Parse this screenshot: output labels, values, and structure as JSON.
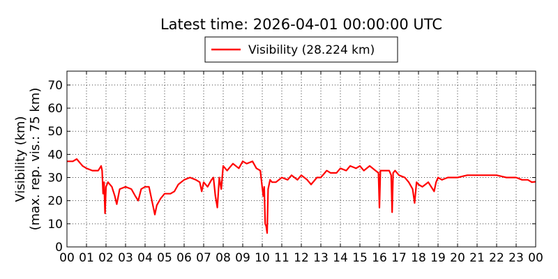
{
  "chart_data": {
    "type": "line",
    "title": "Latest time: 2026-04-01 00:00:00 UTC",
    "ylabel": "Visibility (km)",
    "ylabel2": "(max. rep. vis.: 75 km)",
    "xlabel": "",
    "xlim": [
      0,
      24
    ],
    "ylim": [
      0,
      76
    ],
    "grid": true,
    "legend_position": "top-center",
    "x_tick_labels": [
      "00",
      "01",
      "02",
      "03",
      "04",
      "05",
      "06",
      "07",
      "08",
      "09",
      "10",
      "11",
      "12",
      "13",
      "14",
      "15",
      "16",
      "17",
      "18",
      "19",
      "20",
      "21",
      "22",
      "23",
      "00"
    ],
    "y_ticks": [
      0,
      10,
      20,
      30,
      40,
      50,
      60,
      70
    ],
    "series": [
      {
        "name": "Visibility (28.224 km)",
        "color": "#ff0000",
        "x": [
          0.0,
          0.3,
          0.5,
          0.8,
          1.0,
          1.3,
          1.6,
          1.75,
          1.8,
          1.85,
          1.9,
          1.95,
          2.0,
          2.1,
          2.3,
          2.45,
          2.55,
          2.7,
          3.0,
          3.3,
          3.5,
          3.65,
          3.8,
          4.0,
          4.2,
          4.35,
          4.4,
          4.5,
          4.6,
          4.8,
          5.0,
          5.3,
          5.5,
          5.7,
          6.0,
          6.3,
          6.6,
          6.8,
          6.9,
          7.0,
          7.2,
          7.4,
          7.5,
          7.6,
          7.7,
          7.8,
          7.9,
          8.0,
          8.2,
          8.5,
          8.8,
          9.0,
          9.2,
          9.5,
          9.7,
          9.9,
          10.05,
          10.1,
          10.15,
          10.2,
          10.25,
          10.3,
          10.4,
          10.5,
          10.7,
          11.0,
          11.3,
          11.5,
          11.8,
          12.0,
          12.3,
          12.5,
          12.8,
          13.0,
          13.3,
          13.5,
          13.8,
          14.0,
          14.3,
          14.5,
          14.8,
          15.0,
          15.2,
          15.5,
          15.8,
          15.95,
          16.0,
          16.05,
          16.2,
          16.5,
          16.6,
          16.65,
          16.7,
          16.8,
          17.0,
          17.3,
          17.5,
          17.7,
          17.8,
          17.9,
          18.0,
          18.2,
          18.5,
          18.8,
          18.9,
          19.0,
          19.2,
          19.5,
          19.8,
          20.0,
          20.5,
          21.0,
          21.5,
          22.0,
          22.5,
          23.0,
          23.3,
          23.6,
          23.8,
          24.0
        ],
        "y": [
          37,
          37,
          38,
          35,
          34,
          33,
          33,
          35,
          33,
          23,
          28,
          14.5,
          26,
          28,
          26,
          22,
          18.5,
          25,
          26,
          25,
          22,
          20,
          25,
          26,
          26,
          20,
          18,
          14,
          18,
          21,
          23,
          23,
          24,
          27,
          29,
          30,
          29,
          28,
          24,
          28,
          26,
          29,
          30,
          22,
          17,
          30,
          25,
          35,
          33,
          36,
          34,
          37,
          36,
          37,
          34,
          33,
          22,
          26,
          10,
          9,
          6,
          25,
          29,
          28,
          28,
          30,
          29,
          31,
          29,
          31,
          29,
          27,
          30,
          30,
          33,
          32,
          32,
          34,
          33,
          35,
          34,
          35,
          33,
          35,
          33,
          32,
          17,
          33,
          33,
          33,
          31,
          15,
          32,
          33,
          31,
          30,
          28,
          25,
          19,
          28,
          27,
          26,
          28,
          24,
          28,
          30,
          29,
          30,
          30,
          30,
          31,
          31,
          31,
          31,
          30,
          30,
          29,
          29,
          28,
          28.2
        ]
      }
    ]
  }
}
